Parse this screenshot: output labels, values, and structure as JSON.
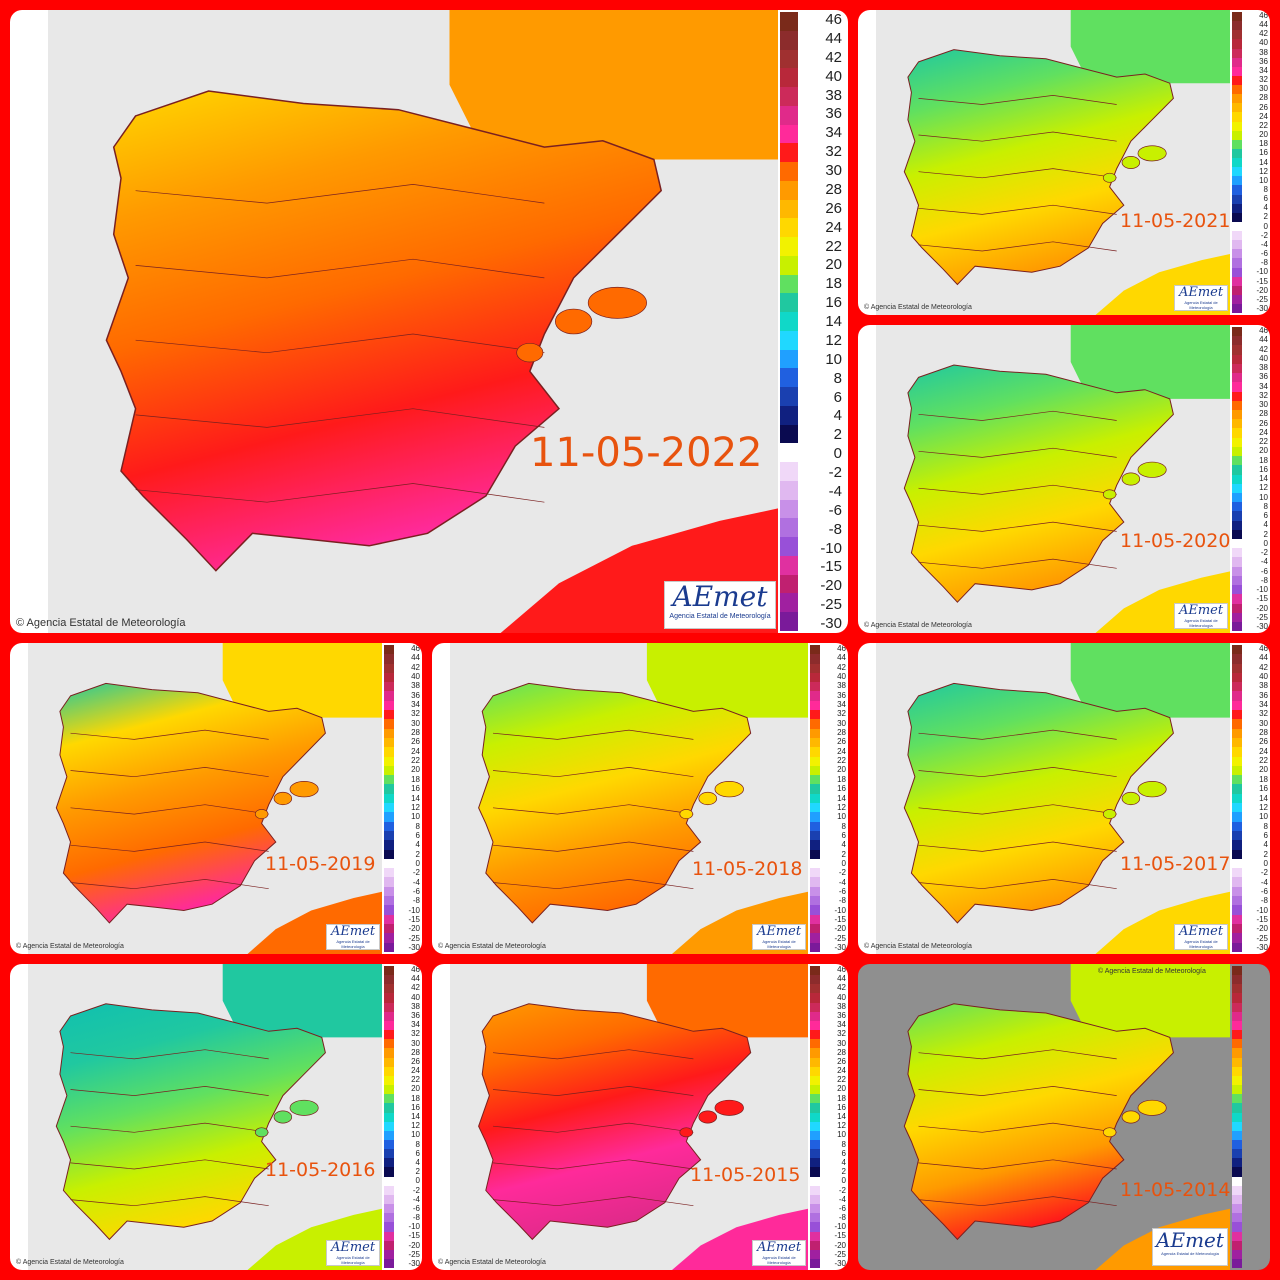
{
  "credit": "Agencia Estatal de Meteorología",
  "logo": {
    "text": "AEmet",
    "sub": "Agencia Estatal de Meteorología"
  },
  "scale_labels": [
    "46",
    "44",
    "42",
    "40",
    "38",
    "36",
    "34",
    "32",
    "30",
    "28",
    "26",
    "24",
    "22",
    "20",
    "18",
    "16",
    "14",
    "12",
    "10",
    "8",
    "6",
    "4",
    "2",
    "0",
    "-2",
    "-4",
    "-6",
    "-8",
    "-10",
    "-15",
    "-20",
    "-25",
    "-30"
  ],
  "scale_colors": [
    "#7a2a1a",
    "#8c2c2c",
    "#a03030",
    "#b8283a",
    "#cc2a5a",
    "#e02a8a",
    "#ff2a9a",
    "#ff1a1a",
    "#ff6a00",
    "#ff9a00",
    "#ffb800",
    "#ffd800",
    "#f2f200",
    "#c8f000",
    "#60e060",
    "#20c8a0",
    "#10d8c8",
    "#20d8ff",
    "#20a0ff",
    "#2060e0",
    "#1a40b0",
    "#102080",
    "#0a0a50",
    "#ffffff",
    "#f0d8f8",
    "#e0b8f0",
    "#c890e8",
    "#b070e0",
    "#9850d8",
    "#e030a0",
    "#c02070",
    "#a020a0",
    "#7a1a9a"
  ],
  "panels": [
    {
      "date": "11-05-2022",
      "fill": [
        "#ffd800",
        "#ff9a00",
        "#ff6a00",
        "#ff1a1a",
        "#ff2a9a"
      ]
    },
    {
      "date": "11-05-2021",
      "fill": [
        "#20c8a0",
        "#60e060",
        "#c8f000",
        "#ffd800",
        "#ff9a00"
      ]
    },
    {
      "date": "11-05-2020",
      "fill": [
        "#20c8a0",
        "#60e060",
        "#c8f000",
        "#ffd800",
        "#ff9a00"
      ]
    },
    {
      "date": "11-05-2019",
      "fill": [
        "#20c8a0",
        "#ffd800",
        "#ff9a00",
        "#ff6a00",
        "#ff2a9a"
      ]
    },
    {
      "date": "11-05-2018",
      "fill": [
        "#60e060",
        "#c8f000",
        "#ffd800",
        "#ff9a00",
        "#ff6a00"
      ]
    },
    {
      "date": "11-05-2017",
      "fill": [
        "#20c8a0",
        "#60e060",
        "#c8f000",
        "#ffd800",
        "#ff9a00"
      ]
    },
    {
      "date": "11-05-2016",
      "fill": [
        "#10c0b0",
        "#20c8a0",
        "#60e060",
        "#c8f000",
        "#ffd800"
      ]
    },
    {
      "date": "11-05-2015",
      "fill": [
        "#ff9a00",
        "#ff6a00",
        "#ff1a1a",
        "#ff2a9a",
        "#e02a8a"
      ]
    },
    {
      "date": "11-05-2014",
      "fill": [
        "#60e060",
        "#c8f000",
        "#ffd800",
        "#ff9a00",
        "#ff1a1a"
      ]
    }
  ]
}
